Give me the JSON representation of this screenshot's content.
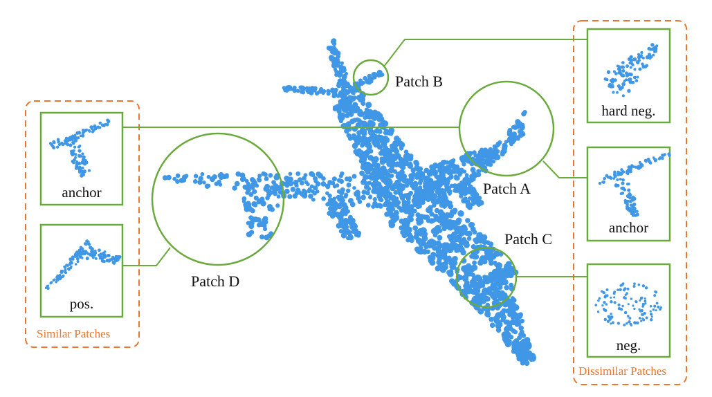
{
  "colors": {
    "point": "#3f97e6",
    "frame": "#6aaa3c",
    "group": "#e8762d",
    "text": "#111111"
  },
  "patches": {
    "a": "Patch A",
    "b": "Patch B",
    "c": "Patch C",
    "d": "Patch D"
  },
  "similar_group": {
    "title": "Similar Patches",
    "boxes": [
      "anchor",
      "pos."
    ]
  },
  "dissimilar_group": {
    "title": "Dissimilar Patches",
    "boxes": [
      "hard neg.",
      "anchor",
      "neg."
    ]
  }
}
